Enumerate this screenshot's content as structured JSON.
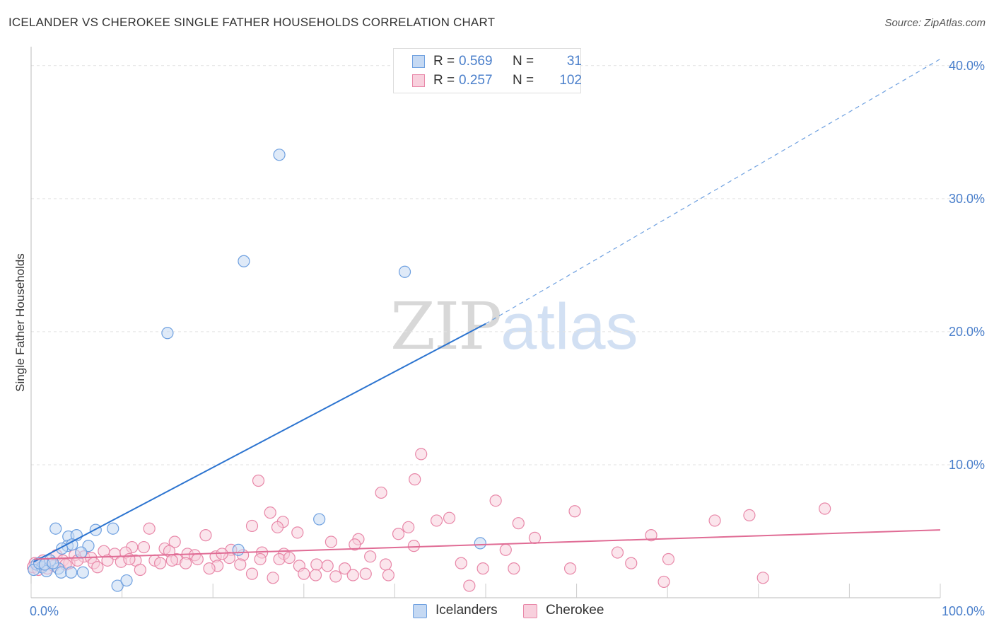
{
  "title": "ICELANDER VS CHEROKEE SINGLE FATHER HOUSEHOLDS CORRELATION CHART",
  "source": "Source: ZipAtlas.com",
  "watermark": {
    "zip": "ZIP",
    "atlas": "atlas"
  },
  "colors": {
    "blue": "#6ea0e0",
    "blue_fill": "#c5d9f3",
    "blue_line": "#2c74d0",
    "pink": "#e887a8",
    "pink_fill": "#f8d0dd",
    "pink_line": "#e06c95",
    "grid": "#e2e2e2",
    "tick_text": "#4a7fcb"
  },
  "legend": {
    "rows": [
      {
        "r_label": "R =",
        "r_value": "0.569",
        "n_label": "N =",
        "n_value": "31"
      },
      {
        "r_label": "R =",
        "r_value": "0.257",
        "n_label": "N =",
        "n_value": "102"
      }
    ]
  },
  "bottom_legend": {
    "items": [
      "Icelanders",
      "Cherokee"
    ]
  },
  "chart_data": {
    "type": "scatter",
    "title": "ICELANDER VS CHEROKEE SINGLE FATHER HOUSEHOLDS CORRELATION CHART",
    "xlabel": "",
    "ylabel": "Single Father Households",
    "xlim": [
      0,
      100
    ],
    "ylim": [
      0,
      41
    ],
    "x_tick_labels": [
      "0.0%",
      "100.0%"
    ],
    "y_ticks": [
      10,
      20,
      30,
      40
    ],
    "y_tick_labels": [
      "10.0%",
      "20.0%",
      "30.0%",
      "40.0%"
    ],
    "grid": true,
    "series": [
      {
        "name": "Icelanders",
        "R": 0.569,
        "N": 31,
        "trend": {
          "x0": 0.3,
          "y0": 2.7,
          "x1": 50.0,
          "y1": 20.6,
          "dashed_to": [
            100,
            40.5
          ]
        },
        "points": [
          [
            27.3,
            33.3
          ],
          [
            23.4,
            25.3
          ],
          [
            41.1,
            24.5
          ],
          [
            15.0,
            19.9
          ],
          [
            2.7,
            5.2
          ],
          [
            7.1,
            5.1
          ],
          [
            9.0,
            5.2
          ],
          [
            4.1,
            4.6
          ],
          [
            5.0,
            4.7
          ],
          [
            31.7,
            5.9
          ],
          [
            4.0,
            3.9
          ],
          [
            4.5,
            4.0
          ],
          [
            6.3,
            3.9
          ],
          [
            3.4,
            3.7
          ],
          [
            5.5,
            3.4
          ],
          [
            22.8,
            3.6
          ],
          [
            49.4,
            4.1
          ],
          [
            0.6,
            2.5
          ],
          [
            1.2,
            2.3
          ],
          [
            1.7,
            2.0
          ],
          [
            2.1,
            2.8
          ],
          [
            3.0,
            2.2
          ],
          [
            0.3,
            2.1
          ],
          [
            0.9,
            2.6
          ],
          [
            1.5,
            2.5
          ],
          [
            2.4,
            2.6
          ],
          [
            3.3,
            1.9
          ],
          [
            4.4,
            1.9
          ],
          [
            5.7,
            1.9
          ],
          [
            9.5,
            0.9
          ],
          [
            10.5,
            1.3
          ]
        ]
      },
      {
        "name": "Cherokee",
        "R": 0.257,
        "N": 102,
        "trend": {
          "x0": 0.3,
          "y0": 2.9,
          "x1": 100.0,
          "y1": 5.1
        },
        "points": [
          [
            42.9,
            10.8
          ],
          [
            25.0,
            8.8
          ],
          [
            42.2,
            8.9
          ],
          [
            38.5,
            7.9
          ],
          [
            51.1,
            7.3
          ],
          [
            87.3,
            6.7
          ],
          [
            26.3,
            6.4
          ],
          [
            59.8,
            6.5
          ],
          [
            79.0,
            6.2
          ],
          [
            75.2,
            5.8
          ],
          [
            27.7,
            5.7
          ],
          [
            44.6,
            5.8
          ],
          [
            46.0,
            6.0
          ],
          [
            53.6,
            5.6
          ],
          [
            24.3,
            5.4
          ],
          [
            27.1,
            5.3
          ],
          [
            41.5,
            5.3
          ],
          [
            13.0,
            5.2
          ],
          [
            19.2,
            4.7
          ],
          [
            40.4,
            4.8
          ],
          [
            29.3,
            4.9
          ],
          [
            68.2,
            4.7
          ],
          [
            36.0,
            4.4
          ],
          [
            55.4,
            4.5
          ],
          [
            15.8,
            4.2
          ],
          [
            33.0,
            4.2
          ],
          [
            35.6,
            4.0
          ],
          [
            42.1,
            3.9
          ],
          [
            11.1,
            3.8
          ],
          [
            12.4,
            3.8
          ],
          [
            14.7,
            3.7
          ],
          [
            15.2,
            3.5
          ],
          [
            17.2,
            3.3
          ],
          [
            18.0,
            3.2
          ],
          [
            8.0,
            3.5
          ],
          [
            9.2,
            3.3
          ],
          [
            10.4,
            3.4
          ],
          [
            5.8,
            3.1
          ],
          [
            4.8,
            3.2
          ],
          [
            6.6,
            3.0
          ],
          [
            2.8,
            3.2
          ],
          [
            3.5,
            2.8
          ],
          [
            22.0,
            3.6
          ],
          [
            25.4,
            3.4
          ],
          [
            27.8,
            3.3
          ],
          [
            52.2,
            3.6
          ],
          [
            64.5,
            3.4
          ],
          [
            37.3,
            3.1
          ],
          [
            23.3,
            3.2
          ],
          [
            21.8,
            3.0
          ],
          [
            20.3,
            3.1
          ],
          [
            16.0,
            2.9
          ],
          [
            13.6,
            2.8
          ],
          [
            11.5,
            2.8
          ],
          [
            9.9,
            2.7
          ],
          [
            8.4,
            2.8
          ],
          [
            6.9,
            2.6
          ],
          [
            4.2,
            2.6
          ],
          [
            1.3,
            2.8
          ],
          [
            0.4,
            2.6
          ],
          [
            0.2,
            2.3
          ],
          [
            0.8,
            2.1
          ],
          [
            1.8,
            2.2
          ],
          [
            2.5,
            2.4
          ],
          [
            3.8,
            2.5
          ],
          [
            14.2,
            2.6
          ],
          [
            17.0,
            2.6
          ],
          [
            20.5,
            2.4
          ],
          [
            23.0,
            2.5
          ],
          [
            25.2,
            2.9
          ],
          [
            27.3,
            2.9
          ],
          [
            29.5,
            2.4
          ],
          [
            31.4,
            2.5
          ],
          [
            32.6,
            2.4
          ],
          [
            34.5,
            2.2
          ],
          [
            39.0,
            2.5
          ],
          [
            47.3,
            2.6
          ],
          [
            49.7,
            2.2
          ],
          [
            53.1,
            2.2
          ],
          [
            59.3,
            2.2
          ],
          [
            66.0,
            2.6
          ],
          [
            70.1,
            2.9
          ],
          [
            12.0,
            2.1
          ],
          [
            19.6,
            2.2
          ],
          [
            30.0,
            1.8
          ],
          [
            31.3,
            1.7
          ],
          [
            26.6,
            1.5
          ],
          [
            33.5,
            1.6
          ],
          [
            35.4,
            1.7
          ],
          [
            36.8,
            1.8
          ],
          [
            39.3,
            1.7
          ],
          [
            48.2,
            0.9
          ],
          [
            69.6,
            1.2
          ],
          [
            80.5,
            1.5
          ],
          [
            24.3,
            1.8
          ],
          [
            18.3,
            2.9
          ],
          [
            15.5,
            2.8
          ],
          [
            10.8,
            2.9
          ],
          [
            7.3,
            2.3
          ],
          [
            5.1,
            2.8
          ],
          [
            21.0,
            3.3
          ],
          [
            28.4,
            3.0
          ]
        ]
      }
    ]
  }
}
